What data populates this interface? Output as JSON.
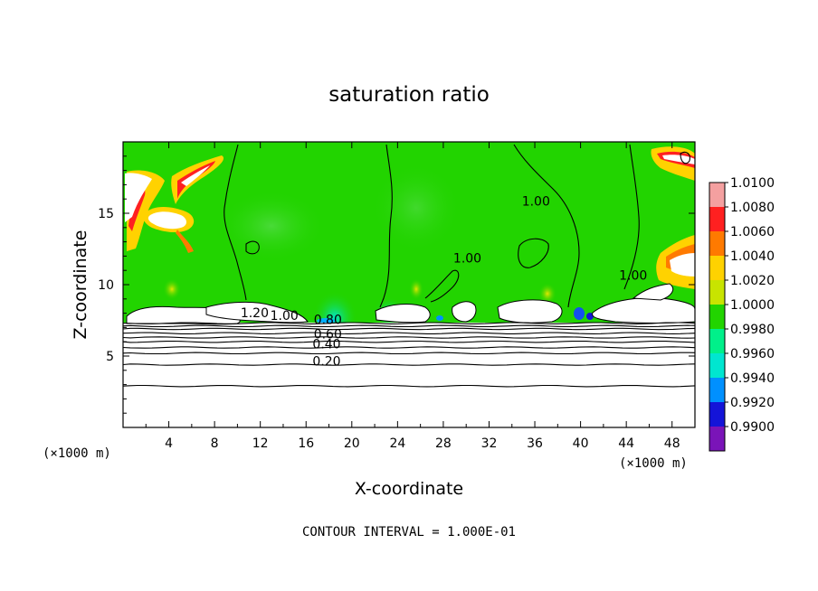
{
  "chart_data": {
    "type": "heatmap",
    "title": "saturation ratio",
    "xlabel": "X-coordinate",
    "ylabel": "Z-coordinate",
    "x_unit_left": "(×1000 m)",
    "x_unit_right": "(×1000 m)",
    "xlim": [
      0,
      50
    ],
    "ylim": [
      0,
      20
    ],
    "x_ticks": [
      4,
      8,
      12,
      16,
      20,
      24,
      28,
      32,
      36,
      40,
      44,
      48
    ],
    "y_ticks": [
      5,
      10,
      15
    ],
    "footer": "CONTOUR INTERVAL = 1.000E-01",
    "colorbar": {
      "labels": [
        "1.0100",
        "1.0080",
        "1.0060",
        "1.0040",
        "1.0020",
        "1.0000",
        "0.9980",
        "0.9960",
        "0.9940",
        "0.9920",
        "0.9900"
      ],
      "colors": [
        "#f4a0a0",
        "#ff2020",
        "#ff7a00",
        "#ffd200",
        "#c8e400",
        "#22d400",
        "#00f08a",
        "#00e6d0",
        "#0090ff",
        "#1414d8",
        "#7a14b8"
      ]
    },
    "contour_labels": [
      {
        "text": "1.00",
        "x": 36.1,
        "y": 15.6
      },
      {
        "text": "1.00",
        "x": 30.1,
        "y": 11.6
      },
      {
        "text": "1.00",
        "x": 44.6,
        "y": 10.4
      },
      {
        "text": "1.20",
        "x": 11.5,
        "y": 7.8
      },
      {
        "text": "1.00",
        "x": 14.1,
        "y": 7.6
      },
      {
        "text": "0.80",
        "x": 17.9,
        "y": 7.3
      },
      {
        "text": "0.60",
        "x": 17.9,
        "y": 6.3
      },
      {
        "text": "0.40",
        "x": 17.8,
        "y": 5.6
      },
      {
        "text": "0.20",
        "x": 17.8,
        "y": 4.4
      }
    ],
    "contour_levels_horizontal": [
      {
        "level": 0.1,
        "z": 2.9
      },
      {
        "level": 0.2,
        "z": 4.4
      },
      {
        "level": 0.3,
        "z": 5.2
      },
      {
        "level": 0.4,
        "z": 5.6
      },
      {
        "level": 0.5,
        "z": 6.0
      },
      {
        "level": 0.6,
        "z": 6.3
      },
      {
        "level": 0.7,
        "z": 6.6
      },
      {
        "level": 0.8,
        "z": 6.9
      },
      {
        "level": 0.9,
        "z": 7.1
      },
      {
        "level": 1.0,
        "z": 7.3
      }
    ]
  }
}
